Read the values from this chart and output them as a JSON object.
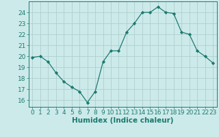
{
  "x": [
    0,
    1,
    2,
    3,
    4,
    5,
    6,
    7,
    8,
    9,
    10,
    11,
    12,
    13,
    14,
    15,
    16,
    17,
    18,
    19,
    20,
    21,
    22,
    23
  ],
  "y": [
    19.9,
    20.0,
    19.5,
    18.5,
    17.7,
    17.2,
    16.8,
    15.8,
    16.8,
    19.5,
    20.5,
    20.5,
    22.2,
    23.0,
    24.0,
    24.0,
    24.5,
    24.0,
    23.9,
    22.2,
    22.0,
    20.5,
    20.0,
    19.4
  ],
  "line_color": "#1a7a6e",
  "marker": "D",
  "marker_size": 2.2,
  "bg_color": "#cdeaea",
  "grid_color": "#aecece",
  "xlabel": "Humidex (Indice chaleur)",
  "xlabel_fontsize": 7.5,
  "ylabel_ticks": [
    16,
    17,
    18,
    19,
    20,
    21,
    22,
    23,
    24
  ],
  "ylim": [
    15.4,
    25.0
  ],
  "xlim": [
    -0.5,
    23.5
  ],
  "tick_fontsize": 6.5
}
